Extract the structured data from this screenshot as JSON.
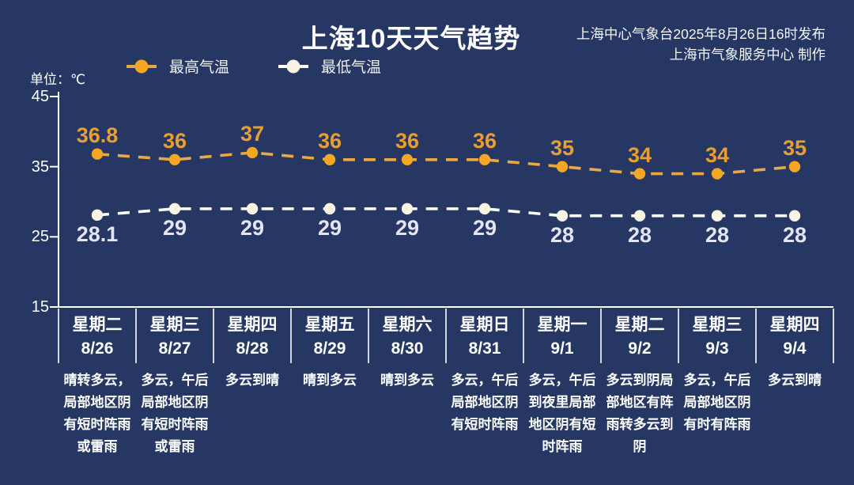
{
  "title": "上海10天天气趋势",
  "source": {
    "line1": "上海中心气象台2025年8月26日16时发布",
    "line2": "上海市气象服务中心 制作"
  },
  "unit_label": "单位：℃",
  "colors": {
    "background": "#263763",
    "axis": "#FFFFFF",
    "high_marker": "#F5A623",
    "high_line": "#E8A845",
    "high_label": "#E79F33",
    "low_marker": "#F8F3E3",
    "low_line": "#FFFFFF",
    "low_label": "#E4E4F4"
  },
  "legend": {
    "items": [
      {
        "label": "最高气温",
        "color": "#F5A623"
      },
      {
        "label": "最低气温",
        "color": "#F8F3E3"
      }
    ]
  },
  "chart_data": {
    "type": "line",
    "title": "上海10天天气趋势",
    "ylabel": "单位：℃",
    "ylim": [
      15,
      45
    ],
    "yticks": [
      45,
      35,
      25,
      15
    ],
    "grid": false,
    "legend_position": "top-left",
    "line_style": "dashed",
    "weekdays": [
      "星期二",
      "星期三",
      "星期四",
      "星期五",
      "星期六",
      "星期日",
      "星期一",
      "星期二",
      "星期三",
      "星期四"
    ],
    "categories": [
      "8/26",
      "8/27",
      "8/28",
      "8/29",
      "8/30",
      "8/31",
      "9/1",
      "9/2",
      "9/3",
      "9/4"
    ],
    "weather": [
      "晴转多云，局部地区阴有短时阵雨或雷雨",
      "多云，午后局部地区阴有短时阵雨或雷雨",
      "多云到晴",
      "晴到多云",
      "晴到多云",
      "多云，午后局部地区阴有短时阵雨",
      "多云，午后到夜里局部地区阴有短时阵雨",
      "多云到阴局部地区有阵雨转多云到阴",
      "多云，午后局部地区阴有时有阵雨",
      "多云到晴"
    ],
    "series": [
      {
        "name": "最高气温",
        "values": [
          36.8,
          36,
          37,
          36,
          36,
          36,
          35,
          34,
          34,
          35
        ]
      },
      {
        "name": "最低气温",
        "values": [
          28.1,
          29,
          29,
          29,
          29,
          29,
          28,
          28,
          28,
          28
        ]
      }
    ]
  }
}
